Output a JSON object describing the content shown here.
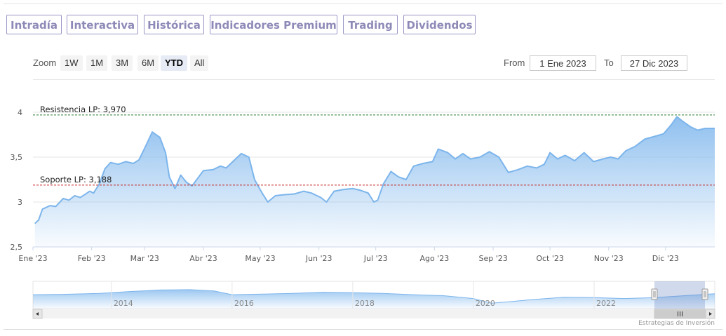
{
  "tabs": [
    {
      "label": "Intradía",
      "style": "normal",
      "active": false
    },
    {
      "label": "Interactiva",
      "style": "normal",
      "active": false
    },
    {
      "label": "Histórica",
      "style": "normal",
      "active": true
    },
    {
      "label": "Indicadores Premium",
      "style": "premium",
      "active": false
    },
    {
      "label": "Trading",
      "style": "premium",
      "active": false
    },
    {
      "label": "Dividendos",
      "style": "normal",
      "active": false
    }
  ],
  "range_selector": {
    "zoom_label": "Zoom",
    "buttons": [
      "1W",
      "1M",
      "3M",
      "6M",
      "YTD",
      "All"
    ],
    "selected": "YTD",
    "from_label": "From",
    "from_value": "1 Ene 2023",
    "to_label": "To",
    "to_value": "27 Dic 2023"
  },
  "chart_data": {
    "type": "area",
    "title": "",
    "xlabel": "",
    "ylabel": "",
    "x_tick_labels": [
      "Ene '23",
      "Feb '23",
      "Mar '23",
      "Abr '23",
      "May '23",
      "Jun '23",
      "Jul '23",
      "Ago '23",
      "Sep '23",
      "Oct '23",
      "Nov '23",
      "Dic '23"
    ],
    "y_ticks": [
      "2,5",
      "3",
      "3,5",
      "4"
    ],
    "ylim": [
      2.5,
      4.0
    ],
    "grid": "horizontal",
    "x_range": [
      "2023-01-01",
      "2023-12-27"
    ],
    "series": [
      {
        "color": "#7cb5ec",
        "points": [
          [
            "2023-01-02",
            2.76
          ],
          [
            "2023-01-04",
            2.8
          ],
          [
            "2023-01-06",
            2.92
          ],
          [
            "2023-01-10",
            2.96
          ],
          [
            "2023-01-13",
            2.95
          ],
          [
            "2023-01-17",
            3.04
          ],
          [
            "2023-01-20",
            3.02
          ],
          [
            "2023-01-23",
            3.07
          ],
          [
            "2023-01-26",
            3.05
          ],
          [
            "2023-01-31",
            3.12
          ],
          [
            "2023-02-02",
            3.1
          ],
          [
            "2023-02-05",
            3.2
          ],
          [
            "2023-02-08",
            3.37
          ],
          [
            "2023-02-11",
            3.44
          ],
          [
            "2023-02-15",
            3.42
          ],
          [
            "2023-02-19",
            3.45
          ],
          [
            "2023-02-23",
            3.43
          ],
          [
            "2023-02-26",
            3.47
          ],
          [
            "2023-03-01",
            3.6
          ],
          [
            "2023-03-05",
            3.78
          ],
          [
            "2023-03-09",
            3.72
          ],
          [
            "2023-03-12",
            3.55
          ],
          [
            "2023-03-14",
            3.28
          ],
          [
            "2023-03-17",
            3.15
          ],
          [
            "2023-03-20",
            3.3
          ],
          [
            "2023-03-23",
            3.22
          ],
          [
            "2023-03-26",
            3.18
          ],
          [
            "2023-04-01",
            3.35
          ],
          [
            "2023-04-06",
            3.36
          ],
          [
            "2023-04-10",
            3.4
          ],
          [
            "2023-04-13",
            3.38
          ],
          [
            "2023-04-18",
            3.48
          ],
          [
            "2023-04-21",
            3.54
          ],
          [
            "2023-04-25",
            3.5
          ],
          [
            "2023-04-28",
            3.25
          ],
          [
            "2023-05-02",
            3.1
          ],
          [
            "2023-05-05",
            3.0
          ],
          [
            "2023-05-09",
            3.07
          ],
          [
            "2023-05-13",
            3.08
          ],
          [
            "2023-05-19",
            3.09
          ],
          [
            "2023-05-24",
            3.12
          ],
          [
            "2023-05-28",
            3.1
          ],
          [
            "2023-06-02",
            3.05
          ],
          [
            "2023-06-05",
            3.0
          ],
          [
            "2023-06-09",
            3.12
          ],
          [
            "2023-06-14",
            3.14
          ],
          [
            "2023-06-19",
            3.15
          ],
          [
            "2023-06-23",
            3.13
          ],
          [
            "2023-06-27",
            3.1
          ],
          [
            "2023-06-30",
            3.0
          ],
          [
            "2023-07-02",
            3.02
          ],
          [
            "2023-07-05",
            3.2
          ],
          [
            "2023-07-09",
            3.34
          ],
          [
            "2023-07-13",
            3.28
          ],
          [
            "2023-07-17",
            3.25
          ],
          [
            "2023-07-21",
            3.4
          ],
          [
            "2023-07-26",
            3.43
          ],
          [
            "2023-07-31",
            3.45
          ],
          [
            "2023-08-03",
            3.59
          ],
          [
            "2023-08-08",
            3.55
          ],
          [
            "2023-08-12",
            3.48
          ],
          [
            "2023-08-16",
            3.54
          ],
          [
            "2023-08-20",
            3.48
          ],
          [
            "2023-08-25",
            3.5
          ],
          [
            "2023-08-30",
            3.56
          ],
          [
            "2023-09-04",
            3.5
          ],
          [
            "2023-09-09",
            3.33
          ],
          [
            "2023-09-14",
            3.36
          ],
          [
            "2023-09-19",
            3.4
          ],
          [
            "2023-09-24",
            3.38
          ],
          [
            "2023-09-28",
            3.42
          ],
          [
            "2023-10-01",
            3.55
          ],
          [
            "2023-10-05",
            3.48
          ],
          [
            "2023-10-09",
            3.52
          ],
          [
            "2023-10-14",
            3.46
          ],
          [
            "2023-10-19",
            3.55
          ],
          [
            "2023-10-24",
            3.45
          ],
          [
            "2023-10-29",
            3.48
          ],
          [
            "2023-11-02",
            3.5
          ],
          [
            "2023-11-06",
            3.48
          ],
          [
            "2023-11-10",
            3.57
          ],
          [
            "2023-11-15",
            3.62
          ],
          [
            "2023-11-20",
            3.7
          ],
          [
            "2023-11-25",
            3.73
          ],
          [
            "2023-11-30",
            3.76
          ],
          [
            "2023-12-04",
            3.86
          ],
          [
            "2023-12-07",
            3.95
          ],
          [
            "2023-12-10",
            3.9
          ],
          [
            "2023-12-14",
            3.84
          ],
          [
            "2023-12-18",
            3.8
          ],
          [
            "2023-12-22",
            3.82
          ],
          [
            "2023-12-27",
            3.82
          ]
        ]
      }
    ],
    "plot_lines": [
      {
        "label": "Resistencia LP: 3,970",
        "value": 3.97,
        "color": "#2e7d32"
      },
      {
        "label": "Soporte LP: 3,188",
        "value": 3.188,
        "color": "#c62828"
      }
    ]
  },
  "navigator": {
    "year_labels": [
      "2014",
      "2016",
      "2018",
      "2020",
      "2022"
    ],
    "years": [
      2014,
      2016,
      2018,
      2020,
      2022
    ],
    "span_years": [
      2012.7,
      2024.0
    ],
    "profile": [
      [
        2012.7,
        0.55
      ],
      [
        2013.2,
        0.57
      ],
      [
        2013.8,
        0.62
      ],
      [
        2014.3,
        0.72
      ],
      [
        2014.8,
        0.8
      ],
      [
        2015.3,
        0.82
      ],
      [
        2015.7,
        0.75
      ],
      [
        2016.0,
        0.55
      ],
      [
        2016.5,
        0.58
      ],
      [
        2017.0,
        0.62
      ],
      [
        2017.5,
        0.68
      ],
      [
        2018.0,
        0.66
      ],
      [
        2018.5,
        0.62
      ],
      [
        2019.0,
        0.55
      ],
      [
        2019.5,
        0.5
      ],
      [
        2020.0,
        0.35
      ],
      [
        2020.3,
        0.1
      ],
      [
        2020.6,
        0.18
      ],
      [
        2021.0,
        0.3
      ],
      [
        2021.5,
        0.42
      ],
      [
        2022.0,
        0.4
      ],
      [
        2022.5,
        0.35
      ],
      [
        2023.0,
        0.4
      ],
      [
        2023.5,
        0.5
      ],
      [
        2024.0,
        0.6
      ]
    ],
    "selection_start_year": 2023.0
  },
  "credits": "Estrategias de Inversión"
}
